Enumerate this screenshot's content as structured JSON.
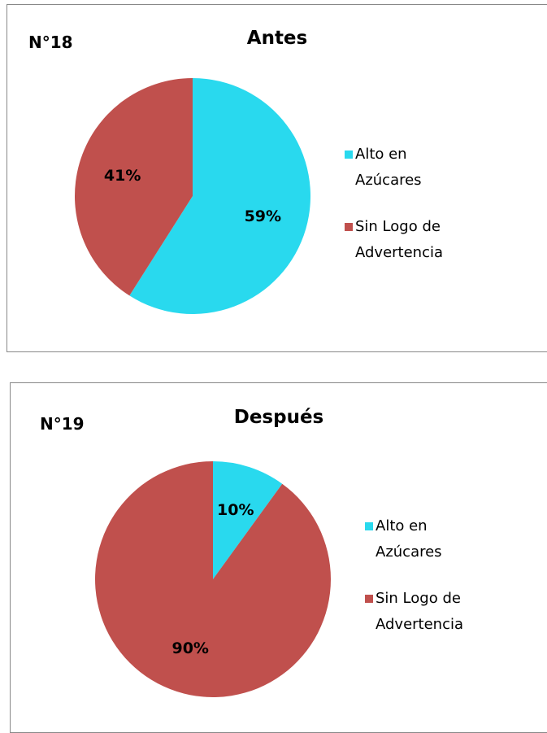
{
  "chart_data": [
    {
      "type": "pie",
      "title": "Antes",
      "annotation": "N°18",
      "categories": [
        "Alto en Azúcares",
        "Sin Logo de Advertencia"
      ],
      "values": [
        59,
        41
      ],
      "value_labels": [
        "59%",
        "41%"
      ],
      "colors": [
        "#29d9ee",
        "#c0504d"
      ],
      "legend": "right"
    },
    {
      "type": "pie",
      "title": "Después",
      "annotation": "N°19",
      "categories": [
        "Alto en Azúcares",
        "Sin Logo de Advertencia"
      ],
      "values": [
        10,
        90
      ],
      "value_labels": [
        "10%",
        "90%"
      ],
      "colors": [
        "#29d9ee",
        "#c0504d"
      ],
      "legend": "right"
    }
  ]
}
